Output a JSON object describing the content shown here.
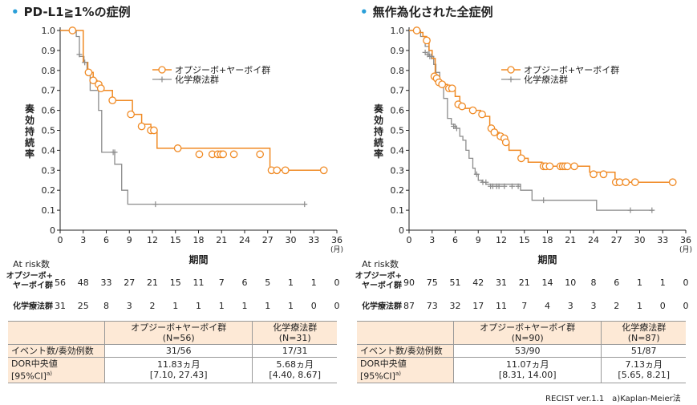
{
  "panels": [
    {
      "title": "PD-L1≧1%の症例",
      "stats": {
        "col_header1_line1": "オプジーボ+ヤーボイ群",
        "col_header1_line2": "(N=56)",
        "col_header2_line1": "化学療法群",
        "col_header2_line2": "(N=31)",
        "row1_label": "イベント数/奏効例数",
        "row1_val1": "31/56",
        "row1_val2": "17/31",
        "row2_label_line1": "DOR中央値",
        "row2_label_line2": "[95%CI]",
        "row2_label_sup": "a)",
        "row2_val1_line1": "11.83ヵ月",
        "row2_val1_line2": "[7.10, 27.43]",
        "row2_val2_line1": "5.68ヵ月",
        "row2_val2_line2": "[4.40, 8.67]"
      }
    },
    {
      "title": "無作為化された全症例",
      "stats": {
        "col_header1_line1": "オプジーボ+ヤーボイ群",
        "col_header1_line2": "(N=90)",
        "col_header2_line1": "化学療法群",
        "col_header2_line2": "(N=87)",
        "row1_label": "イベント数/奏効例数",
        "row1_val1": "53/90",
        "row1_val2": "51/87",
        "row2_label_line1": "DOR中央値",
        "row2_label_line2": "[95%CI]",
        "row2_label_sup": "a)",
        "row2_val1_line1": "11.07ヵ月",
        "row2_val1_line2": "[8.31, 14.00]",
        "row2_val2_line1": "7.13ヵ月",
        "row2_val2_line2": "[5.65, 8.21]"
      }
    }
  ],
  "footnote": "RECIST ver.1.1　a)Kaplan-Meier法",
  "chart_data": [
    {
      "type": "line",
      "step": true,
      "title": "PD-L1≧1%の症例",
      "xlabel": "期間",
      "x_unit": "(月)",
      "ylabel": "奏効持続率",
      "xlim": [
        0,
        36
      ],
      "ylim": [
        0,
        1.0
      ],
      "x_ticks": [
        0,
        3,
        6,
        9,
        12,
        15,
        18,
        21,
        24,
        27,
        30,
        33,
        36
      ],
      "y_ticks": [
        "0",
        "0.1",
        "0.2",
        "0.3",
        "0.4",
        "0.5",
        "0.6",
        "0.7",
        "0.8",
        "0.9",
        "1.0"
      ],
      "legend_position": "top-right",
      "colors": {
        "nivo_ipi": "#f08a24",
        "chemo": "#8c8c8c"
      },
      "series": [
        {
          "name": "オプジーボ+ヤーボイ群",
          "steps": [
            [
              0,
              1.0
            ],
            [
              3.0,
              0.84
            ],
            [
              3.6,
              0.79
            ],
            [
              4.3,
              0.75
            ],
            [
              4.8,
              0.73
            ],
            [
              5.4,
              0.7
            ],
            [
              6.8,
              0.65
            ],
            [
              9.4,
              0.58
            ],
            [
              10.6,
              0.53
            ],
            [
              11.8,
              0.5
            ],
            [
              12.6,
              0.41
            ],
            [
              27.3,
              0.3
            ],
            [
              34.5,
              0.3
            ]
          ],
          "censored": [
            [
              1.6,
              1.0
            ],
            [
              3.7,
              0.79
            ],
            [
              4.3,
              0.75
            ],
            [
              5.0,
              0.73
            ],
            [
              5.3,
              0.71
            ],
            [
              6.8,
              0.65
            ],
            [
              9.2,
              0.58
            ],
            [
              10.6,
              0.52
            ],
            [
              11.8,
              0.5
            ],
            [
              12.2,
              0.5
            ],
            [
              15.3,
              0.41
            ],
            [
              18.1,
              0.38
            ],
            [
              19.8,
              0.38
            ],
            [
              20.5,
              0.38
            ],
            [
              20.9,
              0.38
            ],
            [
              21.2,
              0.38
            ],
            [
              22.6,
              0.38
            ],
            [
              26.0,
              0.38
            ],
            [
              27.5,
              0.3
            ],
            [
              28.2,
              0.3
            ],
            [
              29.3,
              0.3
            ],
            [
              34.3,
              0.3
            ]
          ]
        },
        {
          "name": "化学療法群",
          "steps": [
            [
              0,
              1.0
            ],
            [
              2.1,
              0.97
            ],
            [
              2.5,
              0.87
            ],
            [
              3.1,
              0.84
            ],
            [
              3.5,
              0.8
            ],
            [
              3.9,
              0.7
            ],
            [
              5.0,
              0.6
            ],
            [
              5.4,
              0.39
            ],
            [
              7.1,
              0.33
            ],
            [
              8.0,
              0.2
            ],
            [
              8.8,
              0.13
            ],
            [
              32.0,
              0.13
            ]
          ],
          "censored": [
            [
              2.5,
              0.88
            ],
            [
              3.2,
              0.84
            ],
            [
              6.9,
              0.39
            ],
            [
              7.1,
              0.39
            ],
            [
              12.4,
              0.13
            ],
            [
              31.8,
              0.13
            ]
          ]
        }
      ],
      "at_risk": {
        "label": "At risk数",
        "x": [
          0,
          3,
          6,
          9,
          12,
          15,
          18,
          21,
          24,
          27,
          30,
          33,
          36
        ],
        "rows": [
          {
            "name_line1": "オプジーボ+",
            "name_line2": "ヤーボイ群",
            "values": [
              "56",
              "48",
              "33",
              "27",
              "21",
              "15",
              "11",
              "7",
              "6",
              "5",
              "1",
              "1",
              "0"
            ]
          },
          {
            "name_line1": "化学療法群",
            "name_line2": "",
            "values": [
              "31",
              "25",
              "8",
              "3",
              "2",
              "1",
              "1",
              "1",
              "1",
              "1",
              "1",
              "0",
              "0"
            ]
          }
        ]
      }
    },
    {
      "type": "line",
      "step": true,
      "title": "無作為化された全症例",
      "xlabel": "期間",
      "x_unit": "(月)",
      "ylabel": "奏効持続率",
      "xlim": [
        0,
        36
      ],
      "ylim": [
        0,
        1.0
      ],
      "x_ticks": [
        0,
        3,
        6,
        9,
        12,
        15,
        18,
        21,
        24,
        27,
        30,
        33,
        36
      ],
      "y_ticks": [
        "0",
        "0.1",
        "0.2",
        "0.3",
        "0.4",
        "0.5",
        "0.6",
        "0.7",
        "0.8",
        "0.9",
        "1.0"
      ],
      "legend_position": "top-right",
      "colors": {
        "nivo_ipi": "#f08a24",
        "chemo": "#8c8c8c"
      },
      "series": [
        {
          "name": "オプジーボ+ヤーボイ群",
          "steps": [
            [
              0,
              1.0
            ],
            [
              1.4,
              0.99
            ],
            [
              1.8,
              0.97
            ],
            [
              2.3,
              0.95
            ],
            [
              2.6,
              0.9
            ],
            [
              3.0,
              0.86
            ],
            [
              3.4,
              0.77
            ],
            [
              3.7,
              0.75
            ],
            [
              4.0,
              0.74
            ],
            [
              4.4,
              0.73
            ],
            [
              5.0,
              0.72
            ],
            [
              5.4,
              0.7
            ],
            [
              6.0,
              0.67
            ],
            [
              6.6,
              0.63
            ],
            [
              7.2,
              0.61
            ],
            [
              8.6,
              0.6
            ],
            [
              9.3,
              0.57
            ],
            [
              10.5,
              0.51
            ],
            [
              10.9,
              0.49
            ],
            [
              11.7,
              0.47
            ],
            [
              12.3,
              0.44
            ],
            [
              13.0,
              0.4
            ],
            [
              14.5,
              0.36
            ],
            [
              15.5,
              0.34
            ],
            [
              17.3,
              0.32
            ],
            [
              23.5,
              0.29
            ],
            [
              25.2,
              0.29
            ],
            [
              26.8,
              0.24
            ],
            [
              34.5,
              0.24
            ]
          ],
          "censored": [
            [
              1.0,
              1.0
            ],
            [
              2.3,
              0.95
            ],
            [
              3.3,
              0.77
            ],
            [
              3.6,
              0.76
            ],
            [
              3.9,
              0.74
            ],
            [
              4.3,
              0.73
            ],
            [
              5.2,
              0.71
            ],
            [
              5.6,
              0.71
            ],
            [
              6.4,
              0.63
            ],
            [
              6.9,
              0.62
            ],
            [
              8.3,
              0.6
            ],
            [
              9.5,
              0.58
            ],
            [
              10.7,
              0.51
            ],
            [
              11.1,
              0.49
            ],
            [
              11.9,
              0.47
            ],
            [
              12.4,
              0.46
            ],
            [
              12.6,
              0.44
            ],
            [
              14.6,
              0.36
            ],
            [
              17.5,
              0.32
            ],
            [
              17.8,
              0.32
            ],
            [
              18.3,
              0.32
            ],
            [
              19.7,
              0.32
            ],
            [
              20.0,
              0.32
            ],
            [
              20.3,
              0.32
            ],
            [
              20.6,
              0.32
            ],
            [
              21.5,
              0.32
            ],
            [
              24.0,
              0.28
            ],
            [
              25.3,
              0.28
            ],
            [
              26.9,
              0.24
            ],
            [
              27.4,
              0.24
            ],
            [
              28.2,
              0.24
            ],
            [
              29.4,
              0.24
            ],
            [
              34.3,
              0.24
            ]
          ]
        },
        {
          "name": "化学療法群",
          "steps": [
            [
              0,
              1.0
            ],
            [
              1.5,
              0.97
            ],
            [
              2.1,
              0.92
            ],
            [
              2.6,
              0.87
            ],
            [
              3.2,
              0.83
            ],
            [
              3.5,
              0.79
            ],
            [
              4.0,
              0.72
            ],
            [
              4.5,
              0.66
            ],
            [
              5.0,
              0.56
            ],
            [
              5.5,
              0.53
            ],
            [
              6.0,
              0.51
            ],
            [
              6.6,
              0.47
            ],
            [
              7.0,
              0.45
            ],
            [
              7.4,
              0.4
            ],
            [
              7.8,
              0.36
            ],
            [
              8.3,
              0.31
            ],
            [
              8.6,
              0.28
            ],
            [
              9.0,
              0.25
            ],
            [
              9.5,
              0.24
            ],
            [
              10.0,
              0.23
            ],
            [
              14.5,
              0.2
            ],
            [
              16.0,
              0.15
            ],
            [
              24.4,
              0.1
            ],
            [
              31.8,
              0.1
            ]
          ],
          "censored": [
            [
              2.1,
              0.89
            ],
            [
              2.4,
              0.88
            ],
            [
              2.7,
              0.87
            ],
            [
              2.9,
              0.87
            ],
            [
              5.8,
              0.52
            ],
            [
              6.2,
              0.51
            ],
            [
              8.8,
              0.28
            ],
            [
              9.6,
              0.24
            ],
            [
              10.0,
              0.24
            ],
            [
              10.6,
              0.22
            ],
            [
              10.9,
              0.22
            ],
            [
              11.4,
              0.22
            ],
            [
              11.7,
              0.22
            ],
            [
              12.4,
              0.22
            ],
            [
              13.4,
              0.22
            ],
            [
              14.2,
              0.22
            ],
            [
              17.5,
              0.15
            ],
            [
              28.8,
              0.1
            ],
            [
              31.6,
              0.1
            ]
          ]
        }
      ],
      "at_risk": {
        "label": "At risk数",
        "x": [
          0,
          3,
          6,
          9,
          12,
          15,
          18,
          21,
          24,
          27,
          30,
          33,
          36
        ],
        "rows": [
          {
            "name_line1": "オプジーボ+",
            "name_line2": "ヤーボイ群",
            "values": [
              "90",
              "75",
              "51",
              "42",
              "31",
              "21",
              "14",
              "10",
              "8",
              "6",
              "1",
              "1",
              "0"
            ]
          },
          {
            "name_line1": "化学療法群",
            "name_line2": "",
            "values": [
              "87",
              "73",
              "32",
              "17",
              "11",
              "7",
              "4",
              "3",
              "3",
              "2",
              "1",
              "0",
              "0"
            ]
          }
        ]
      }
    }
  ]
}
